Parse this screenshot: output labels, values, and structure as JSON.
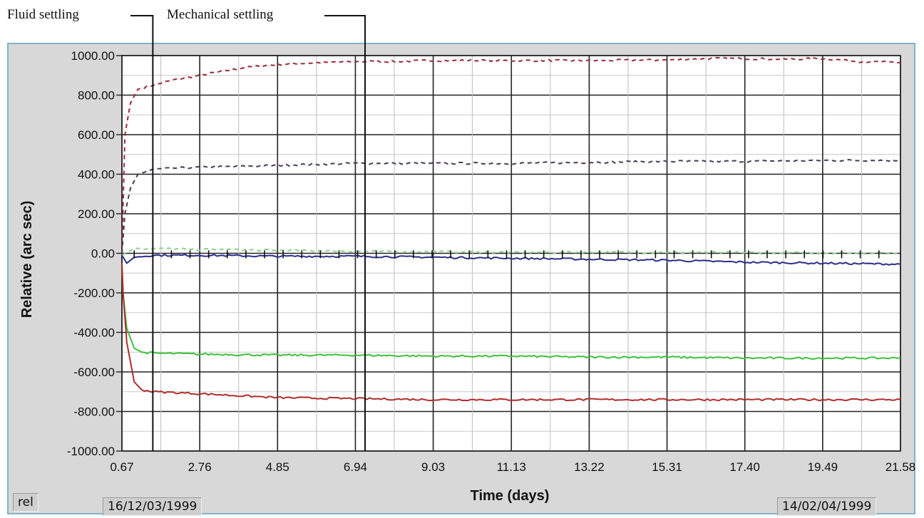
{
  "annotations": {
    "fluid": "Fluid settling",
    "mechanical": "Mechanical settling"
  },
  "footer": {
    "mode": "rel",
    "start_date": "16/12/03/1999",
    "end_date": "14/02/04/1999"
  },
  "colors": {
    "plot_bg": "#ffffff",
    "panel_bg": "#d8d8d8",
    "panel_border": "#7fb3c8",
    "series_red_dashed": "#9b2a3a",
    "series_dark_dashed": "#4a3a55",
    "series_green_dashed": "#8ad08a",
    "series_blue": "#2b2f8a",
    "series_green": "#3bc23b",
    "series_red": "#b02c2c"
  },
  "chart_data": {
    "type": "line",
    "xlabel": "Time (days)",
    "ylabel": "Relative (arc sec)",
    "xlim": [
      0.67,
      21.58
    ],
    "ylim": [
      -1000,
      1000
    ],
    "x_ticks": [
      "0.67",
      "2.76",
      "4.85",
      "6.94",
      "9.03",
      "11.13",
      "13.22",
      "15.31",
      "17.40",
      "19.49",
      "21.58"
    ],
    "y_ticks": [
      "1000.00",
      "800.00",
      "600.00",
      "400.00",
      "200.00",
      "0.00",
      "-200.00",
      "-400.00",
      "-600.00",
      "-800.00",
      "-1000.00"
    ],
    "annotation_lines_x": {
      "fluid": 1.5,
      "mechanical": 7.2
    },
    "series": [
      {
        "style": "dashed",
        "color": "#9b2a3a",
        "x": [
          0.67,
          0.75,
          0.9,
          1.1,
          1.5,
          2.0,
          2.76,
          3.5,
          4.0,
          4.85,
          6.0,
          6.94,
          8.0,
          9.03,
          11.13,
          13.22,
          15.31,
          16.5,
          17.4,
          18.5,
          19.49,
          20.5,
          21.58
        ],
        "y": [
          0,
          600,
          760,
          830,
          850,
          875,
          900,
          925,
          940,
          955,
          965,
          970,
          970,
          975,
          975,
          975,
          978,
          985,
          985,
          982,
          985,
          970,
          965
        ]
      },
      {
        "style": "dashed",
        "color": "#4a3a55",
        "x": [
          0.67,
          0.75,
          0.9,
          1.1,
          1.5,
          2.0,
          2.76,
          4.0,
          4.85,
          6.94,
          9.03,
          11.13,
          13.22,
          15.31,
          17.4,
          19.49,
          21.58
        ],
        "y": [
          0,
          200,
          330,
          400,
          425,
          430,
          435,
          440,
          445,
          455,
          455,
          455,
          460,
          465,
          465,
          470,
          470
        ]
      },
      {
        "style": "dashed",
        "color": "#8ad08a",
        "x": [
          0.67,
          1.0,
          2.76,
          6.94,
          11.13,
          15.31,
          21.58
        ],
        "y": [
          -10,
          25,
          20,
          10,
          5,
          5,
          0
        ]
      },
      {
        "style": "solid",
        "color": "#2b2f8a",
        "x": [
          0.67,
          0.8,
          1.0,
          1.5,
          2.76,
          4.85,
          6.94,
          9.03,
          11.13,
          13.22,
          15.31,
          17.4,
          19.49,
          21.58
        ],
        "y": [
          -10,
          -50,
          -20,
          -10,
          -10,
          -15,
          -15,
          -20,
          -25,
          -30,
          -35,
          -45,
          -50,
          -55
        ]
      },
      {
        "style": "solid",
        "color": "#3bc23b",
        "x": [
          0.67,
          0.7,
          0.8,
          1.0,
          1.2,
          1.5,
          2.76,
          4.85,
          6.94,
          9.03,
          11.13,
          13.22,
          15.31,
          17.4,
          19.49,
          21.58
        ],
        "y": [
          -50,
          -200,
          -380,
          -480,
          -500,
          -505,
          -510,
          -515,
          -515,
          -520,
          -520,
          -525,
          -525,
          -530,
          -530,
          -530
        ]
      },
      {
        "style": "solid",
        "color": "#b02c2c",
        "x": [
          0.67,
          0.7,
          0.8,
          1.0,
          1.2,
          1.5,
          2.76,
          4.85,
          6.94,
          9.03,
          11.13,
          13.22,
          15.31,
          17.4,
          19.49,
          21.58
        ],
        "y": [
          -50,
          -200,
          -450,
          -650,
          -690,
          -700,
          -710,
          -730,
          -735,
          -740,
          -740,
          -740,
          -740,
          -740,
          -740,
          -740
        ]
      }
    ]
  }
}
